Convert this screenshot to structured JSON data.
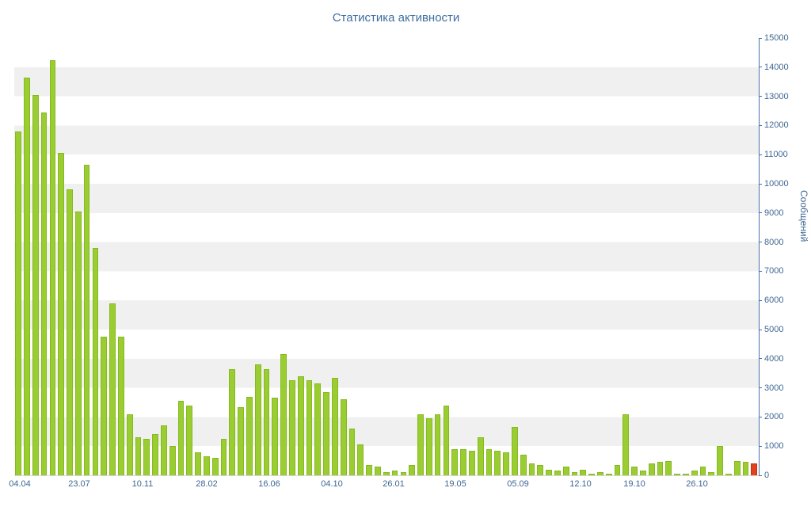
{
  "title": "Статистика активности",
  "colors": {
    "bar": "#9ACD32",
    "bar_border": "#86B91E",
    "highlight": "#E2431E",
    "highlight_border": "#C23112",
    "stripe": "#F0F0F0",
    "axis_line": "#4572A7",
    "text": "#3F6793"
  },
  "chart_data": {
    "type": "bar",
    "title": "Статистика активности",
    "xlabel": "",
    "ylabel": "Сообщений",
    "ylim": [
      0,
      15000
    ],
    "ytick_step": 1000,
    "grid": "horizontal-stripes",
    "legend": "none",
    "highlight_last": true,
    "x_tick_labels": [
      {
        "label": "04.04",
        "pos": 0.0074
      },
      {
        "label": "23.07",
        "pos": 0.0872
      },
      {
        "label": "10.11",
        "pos": 0.1723
      },
      {
        "label": "28.02",
        "pos": 0.2585
      },
      {
        "label": "16.06",
        "pos": 0.3426
      },
      {
        "label": "04.10",
        "pos": 0.4266
      },
      {
        "label": "26.01",
        "pos": 0.5096
      },
      {
        "label": "19.05",
        "pos": 0.5926
      },
      {
        "label": "05.09",
        "pos": 0.6766
      },
      {
        "label": "12.10",
        "pos": 0.7606
      },
      {
        "label": "19.10",
        "pos": 0.833
      },
      {
        "label": "26.10",
        "pos": 0.917
      }
    ],
    "values": [
      11800,
      13650,
      13050,
      12450,
      14250,
      11050,
      9800,
      9050,
      10650,
      7800,
      4750,
      5900,
      4750,
      2100,
      1300,
      1250,
      1400,
      1700,
      1000,
      2550,
      2400,
      800,
      650,
      600,
      1250,
      3650,
      2350,
      2700,
      3800,
      3650,
      2650,
      4150,
      3250,
      3400,
      3250,
      3150,
      2850,
      3350,
      2600,
      1600,
      1050,
      350,
      300,
      100,
      150,
      100,
      350,
      2100,
      1950,
      2100,
      2400,
      900,
      900,
      850,
      1300,
      900,
      850,
      800,
      1650,
      700,
      400,
      350,
      200,
      150,
      300,
      100,
      200,
      50,
      100,
      50,
      350,
      2100,
      300,
      150,
      400,
      450,
      500,
      50,
      50,
      150,
      300,
      100,
      1000,
      50,
      500,
      450,
      400
    ]
  }
}
